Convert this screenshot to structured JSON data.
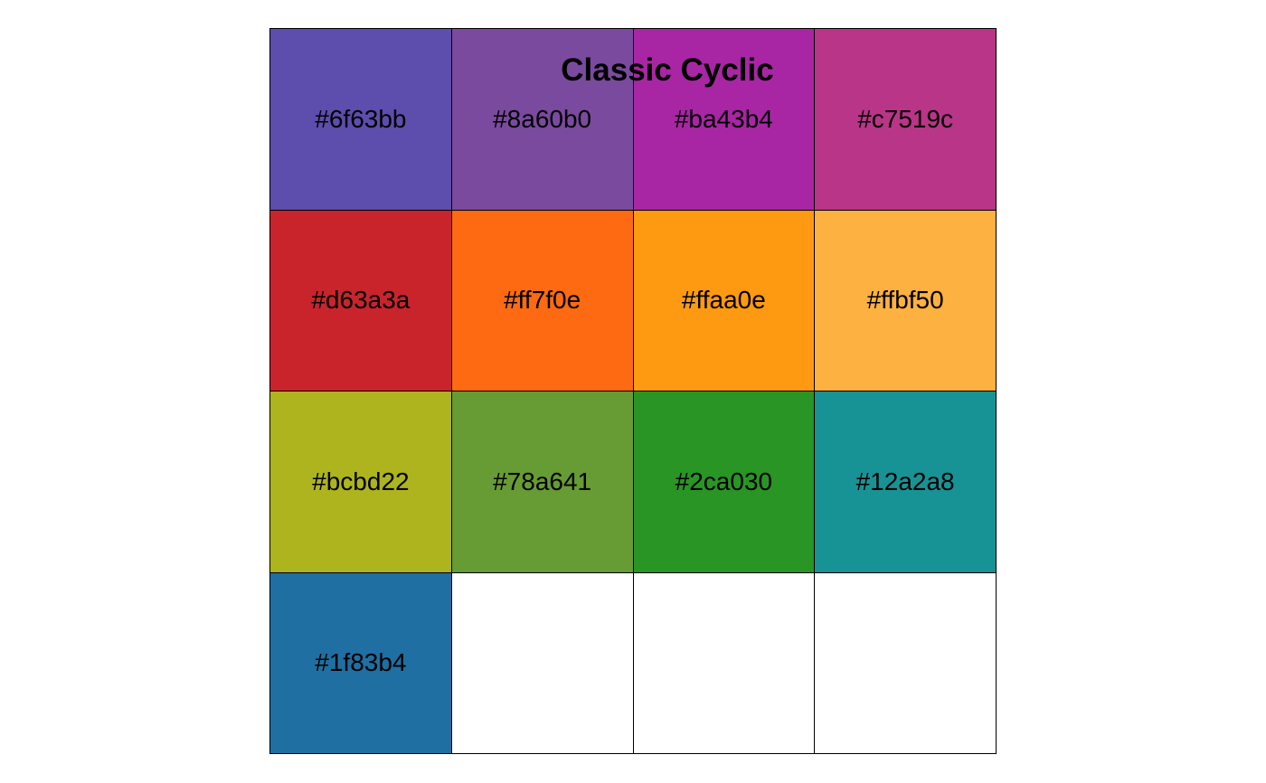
{
  "title": "Classic Cyclic",
  "swatches": [
    {
      "label": "#6f63bb",
      "color": "#5d4dac"
    },
    {
      "label": "#8a60b0",
      "color": "#7a4a9f"
    },
    {
      "label": "#ba43b4",
      "color": "#a826a3"
    },
    {
      "label": "#c7519c",
      "color": "#b83587"
    },
    {
      "label": "#d63a3a",
      "color": "#c9242c"
    },
    {
      "label": "#ff7f0e",
      "color": "#fd6a11"
    },
    {
      "label": "#ffaa0e",
      "color": "#fd9a11"
    },
    {
      "label": "#ffbf50",
      "color": "#fdb140"
    },
    {
      "label": "#bcbd22",
      "color": "#adb41d"
    },
    {
      "label": "#78a641",
      "color": "#679b34"
    },
    {
      "label": "#2ca030",
      "color": "#299524"
    },
    {
      "label": "#12a2a8",
      "color": "#189395"
    },
    {
      "label": "#1f83b4",
      "color": "#1f6fa3"
    },
    {
      "label": "",
      "color": "#ffffff"
    },
    {
      "label": "",
      "color": "#ffffff"
    },
    {
      "label": "",
      "color": "#ffffff"
    }
  ]
}
